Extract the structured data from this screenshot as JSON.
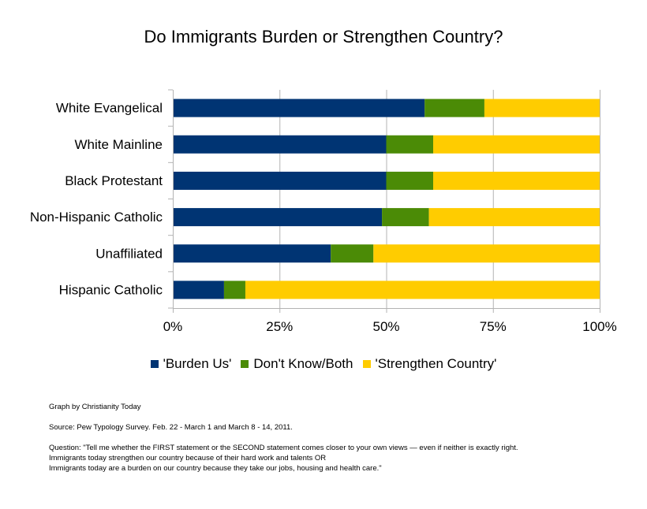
{
  "chart_data": {
    "type": "bar",
    "orientation": "horizontal",
    "stacked": true,
    "percent_scale": true,
    "title": "Do Immigrants Burden or Strengthen Country?",
    "categories": [
      "White Evangelical",
      "White Mainline",
      "Black Protestant",
      "Non-Hispanic Catholic",
      "Unaffiliated",
      "Hispanic Catholic"
    ],
    "series": [
      {
        "name": "'Burden Us'",
        "color": "#003473",
        "values": [
          59,
          50,
          50,
          49,
          37,
          12
        ]
      },
      {
        "name": "Don't Know/Both",
        "color": "#4b8b06",
        "values": [
          14,
          11,
          11,
          11,
          10,
          5
        ]
      },
      {
        "name": "'Strengthen Country'",
        "color": "#ffcc00",
        "values": [
          27,
          39,
          39,
          40,
          53,
          83
        ]
      }
    ],
    "xlim": [
      0,
      100
    ],
    "x_ticks": [
      0,
      25,
      50,
      75,
      100
    ],
    "x_tick_labels": [
      "0%",
      "25%",
      "50%",
      "75%",
      "100%"
    ],
    "grid": true,
    "legend_position": "bottom"
  },
  "notes": {
    "credit": "Graph by Christianity Today",
    "source": "Source:  Pew Typology Survey.  Feb. 22 - March 1 and March 8 - 14, 2011.",
    "question_line1": "Question:  \"Tell me whether the FIRST statement or the SECOND statement comes closer to your own views — even if neither is exactly right.",
    "question_line2": "Immigrants today strengthen our country because of their hard work and talents OR",
    "question_line3": "Immigrants today are a burden on our country because they take our jobs, housing and health care.\""
  }
}
